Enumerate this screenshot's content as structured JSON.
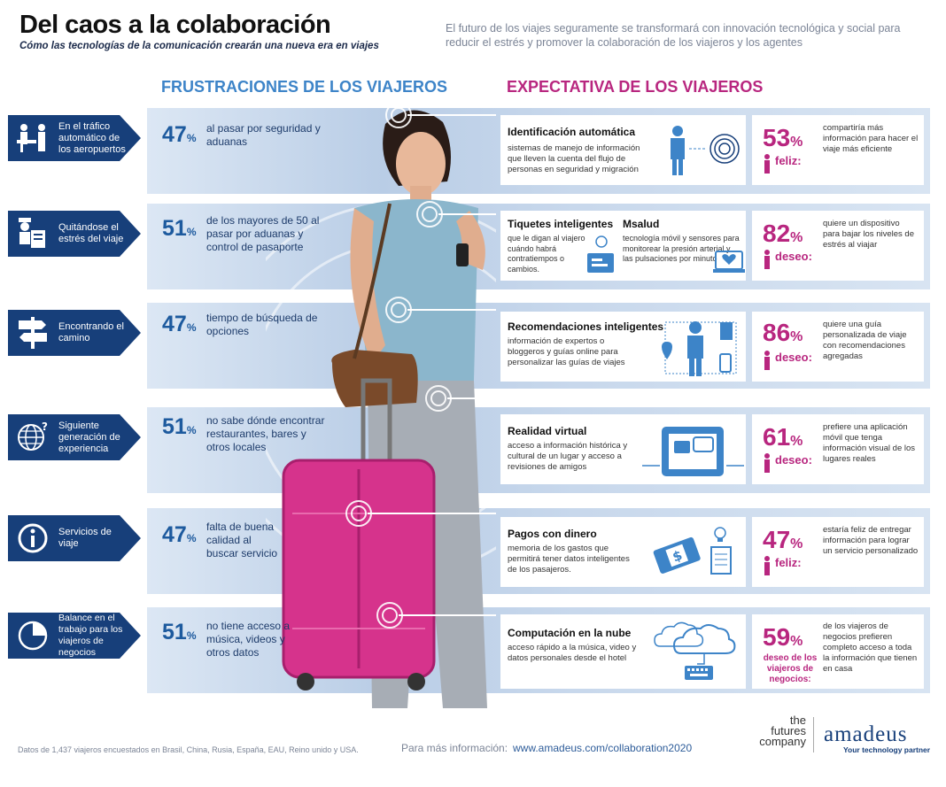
{
  "header": {
    "title": "Del caos a la colaboración",
    "subtitle": "Cómo las tecnologías de la comunicación crearán una nueva era en viajes",
    "intro": "El futuro de los viajes seguramente se transformará con innovación tecnológica y social para reducir el estrés y promover la colaboración de los viajeros y los agentes"
  },
  "section_titles": {
    "left": "FRUSTRACIONES DE LOS VIAJEROS",
    "right": "EXPECTATIVA DE LOS VIAJEROS"
  },
  "colors": {
    "navy": "#173f7a",
    "blue": "#3d84c8",
    "magenta": "#b8267f",
    "band": "#c8d8ec",
    "pink_suitcase": "#d6338c"
  },
  "rows": [
    {
      "icon": "airport-check-icon",
      "label": "En el tráfico automático de los aeropuertos",
      "pct": "47",
      "pct_sign": "%",
      "frustration": "al pasar por seguridad y aduanas",
      "expectation": {
        "title": "Identificación automática",
        "desc": "sistemas de manejo de información que lleven la cuenta del flujo de personas en seguridad y migración",
        "icon": "person-id-scan-icon"
      },
      "stat": {
        "pct": "53",
        "pct_sign": "%",
        "label": "feliz:",
        "text": "compartiría más información para hacer el viaje más eficiente"
      }
    },
    {
      "icon": "customs-officer-icon",
      "label": "Quitándose el estrés del viaje",
      "pct": "51",
      "pct_sign": "%",
      "frustration": "de los mayores de 50 al pasar por aduanas y control de pasaporte",
      "expectation": {
        "title": "Tiquetes inteligentes",
        "desc": "que le digan al viajero cuándo habrá contratiempos o cambios.",
        "icon": "smart-ticket-icon",
        "title2": "Msalud",
        "desc2": "tecnología móvil y sensores para monitorear la presión arterial y las pulsaciones por minuto",
        "icon2": "heart-monitor-icon"
      },
      "stat": {
        "pct": "82",
        "pct_sign": "%",
        "label": "deseo:",
        "text": "quiere un dispositivo para bajar los niveles de estrés al viajar"
      }
    },
    {
      "icon": "signpost-icon",
      "label": "Encontrando el camino",
      "pct": "47",
      "pct_sign": "%",
      "frustration": "tiempo de búsqueda de opciones",
      "expectation": {
        "title": "Recomendaciones inteligentes",
        "desc": "información de expertos o bloggeros y guías online para personalizar las guías de viajes",
        "icon": "person-devices-icon"
      },
      "stat": {
        "pct": "86",
        "pct_sign": "%",
        "label": "deseo:",
        "text": "quiere una guía personalizada de viaje con recomendaciones agregadas"
      }
    },
    {
      "icon": "globe-question-icon",
      "label": "Siguiente generación de experiencia",
      "pct": "51",
      "pct_sign": "%",
      "frustration": "no sabe dónde encontrar restaurantes, bares y otros locales",
      "expectation": {
        "title": "Realidad virtual",
        "desc": "acceso a información histórica y cultural de un lugar y acceso a revisiones de amigos",
        "icon": "tablet-chat-icon"
      },
      "stat": {
        "pct": "61",
        "pct_sign": "%",
        "label": "deseo:",
        "text": "prefiere una aplicación móvil que tenga información visual de los lugares reales"
      }
    },
    {
      "icon": "info-icon",
      "label": "Servicios de viaje",
      "pct": "47",
      "pct_sign": "%",
      "frustration": "falta de buena calidad al buscar servicio",
      "expectation": {
        "title": "Pagos con dinero",
        "desc": "memoria de los gastos que permitirá tener datos inteligentes de los pasajeros.",
        "icon": "mobile-payment-icon"
      },
      "stat": {
        "pct": "47",
        "pct_sign": "%",
        "label": "feliz:",
        "text": "estaría feliz de entregar información para lograr un servicio personalizado"
      }
    },
    {
      "icon": "pie-chart-icon",
      "label": "Balance en el trabajo para los viajeros de negocios",
      "pct": "51",
      "pct_sign": "%",
      "frustration": "no tiene acceso a música, videos y otros datos",
      "expectation": {
        "title": "Computación en la nube",
        "desc": "acceso rápido a la música, video y datos personales desde el hotel",
        "icon": "cloud-keyboard-icon"
      },
      "stat": {
        "pct": "59",
        "pct_sign": "%",
        "label": "deseo de los viajeros de negocios:",
        "text": "de los viajeros de negocios prefieren completo acceso a toda la información que tienen en casa"
      }
    }
  ],
  "footer": {
    "note": "Datos de 1,437 viajeros encuestados en Brasil, China, Rusia, España, EAU, Reino unido y USA.",
    "more_label": "Para más información:",
    "url": "www.amadeus.com/collaboration2020",
    "partner": [
      "the",
      "futures",
      "company"
    ],
    "brand": "amadeus",
    "brand_tagline": "Your technology partner"
  }
}
